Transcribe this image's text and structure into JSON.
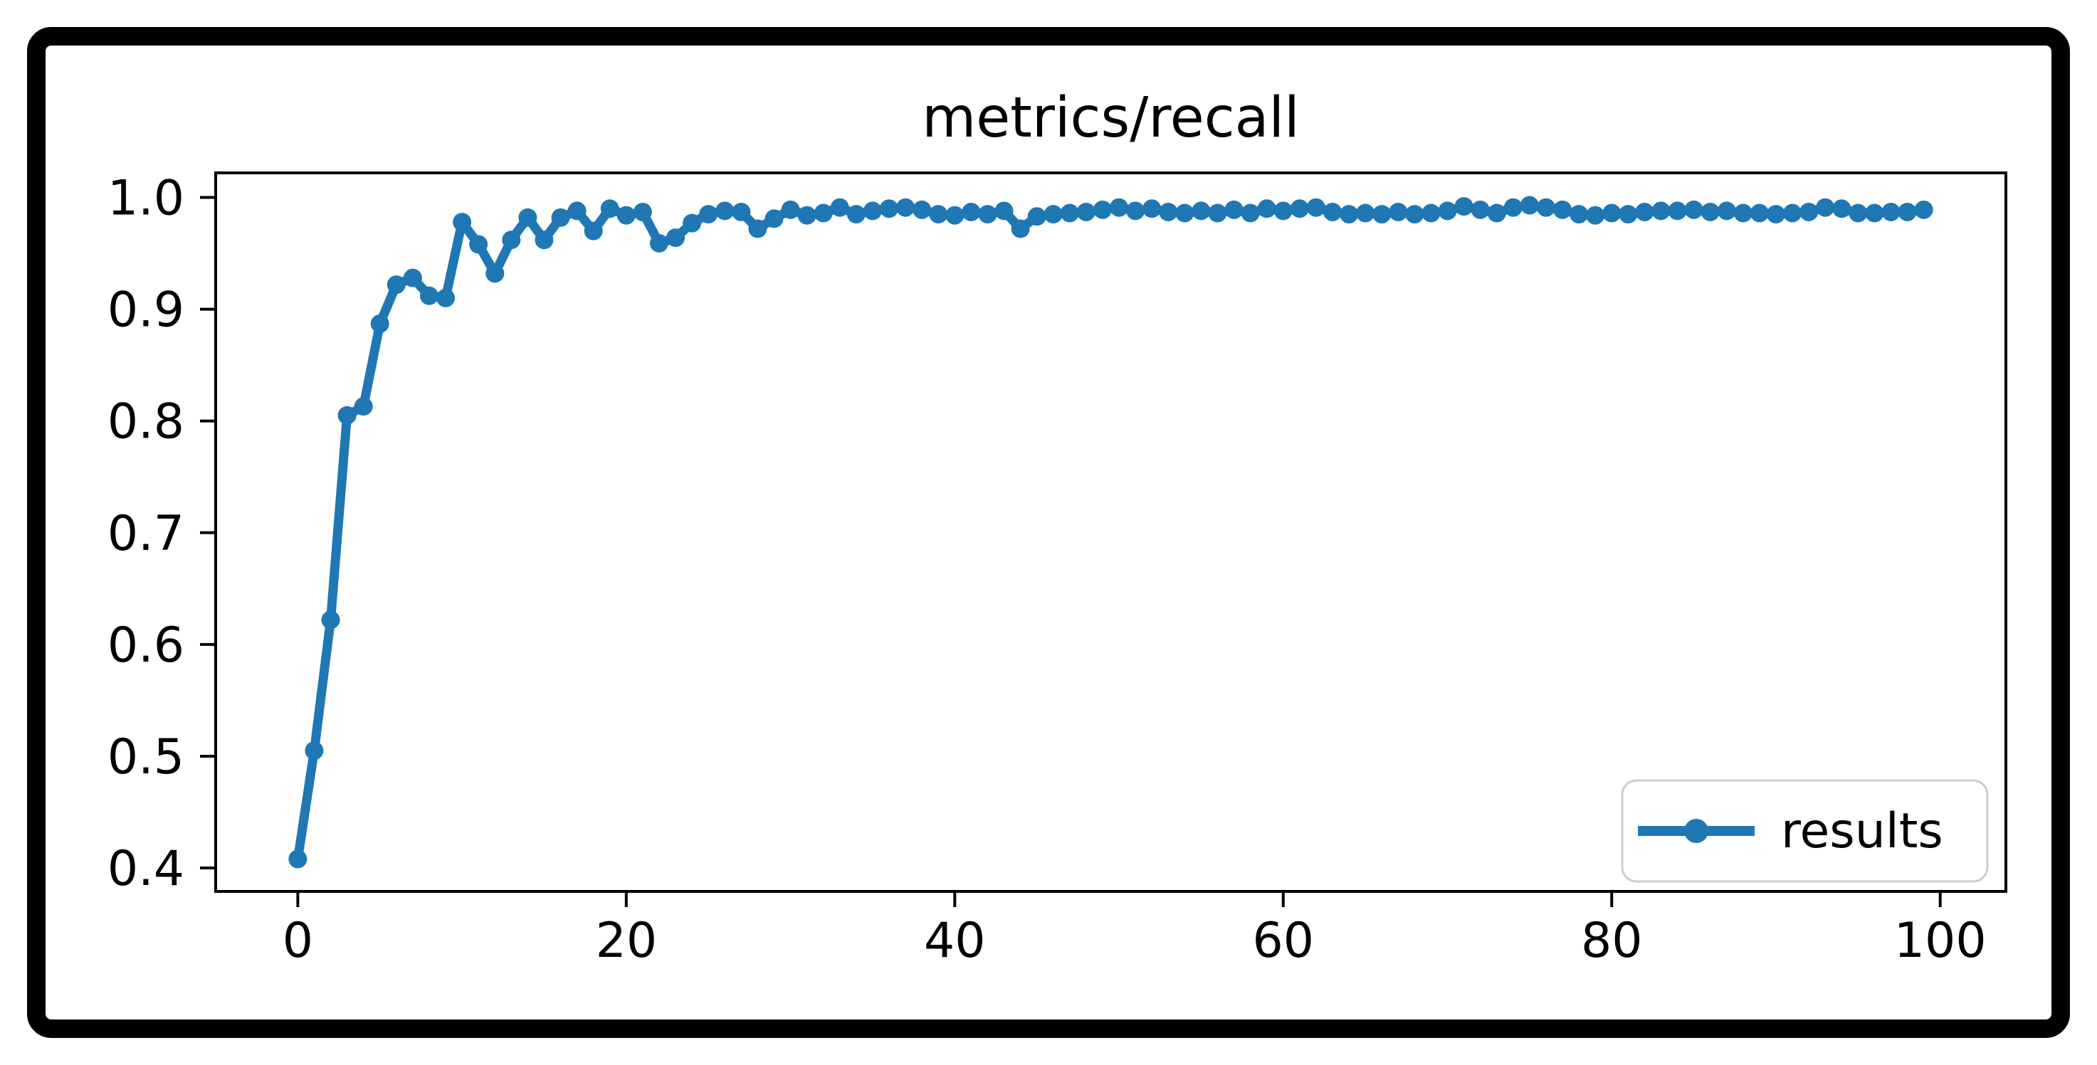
{
  "frame": {
    "outer_background": "#ffffff",
    "border_color": "#000000",
    "chart_background": "#ffffff",
    "text_color": "#000000",
    "legend_border_color": "#cccccc"
  },
  "chart_data": {
    "type": "line",
    "title": "metrics/recall",
    "xlabel": "",
    "ylabel": "",
    "grid": false,
    "xlim": [
      -5,
      104
    ],
    "ylim": [
      0.379,
      1.022
    ],
    "x_ticks": [
      0,
      20,
      40,
      60,
      80,
      100
    ],
    "y_ticks": [
      0.4,
      0.5,
      0.6,
      0.7,
      0.8,
      0.9,
      1.0
    ],
    "legend": {
      "label": "results",
      "position": "lower right"
    },
    "series": [
      {
        "name": "results",
        "color": "#1f77b4",
        "marker": "circle",
        "x_start": 0,
        "x_step": 1,
        "values": [
          0.408,
          0.505,
          0.622,
          0.805,
          0.813,
          0.887,
          0.922,
          0.928,
          0.912,
          0.91,
          0.978,
          0.958,
          0.932,
          0.962,
          0.982,
          0.962,
          0.982,
          0.988,
          0.97,
          0.99,
          0.984,
          0.987,
          0.959,
          0.964,
          0.977,
          0.985,
          0.988,
          0.987,
          0.972,
          0.981,
          0.989,
          0.984,
          0.986,
          0.991,
          0.985,
          0.988,
          0.99,
          0.991,
          0.989,
          0.985,
          0.984,
          0.987,
          0.985,
          0.988,
          0.972,
          0.983,
          0.985,
          0.986,
          0.987,
          0.989,
          0.991,
          0.988,
          0.99,
          0.987,
          0.986,
          0.988,
          0.986,
          0.989,
          0.986,
          0.99,
          0.988,
          0.99,
          0.991,
          0.987,
          0.985,
          0.986,
          0.985,
          0.987,
          0.985,
          0.986,
          0.988,
          0.992,
          0.989,
          0.986,
          0.991,
          0.993,
          0.991,
          0.989,
          0.985,
          0.984,
          0.986,
          0.985,
          0.987,
          0.988,
          0.988,
          0.989,
          0.987,
          0.988,
          0.986,
          0.986,
          0.985,
          0.986,
          0.987,
          0.991,
          0.99,
          0.986,
          0.986,
          0.987,
          0.987,
          0.989
        ]
      }
    ]
  }
}
